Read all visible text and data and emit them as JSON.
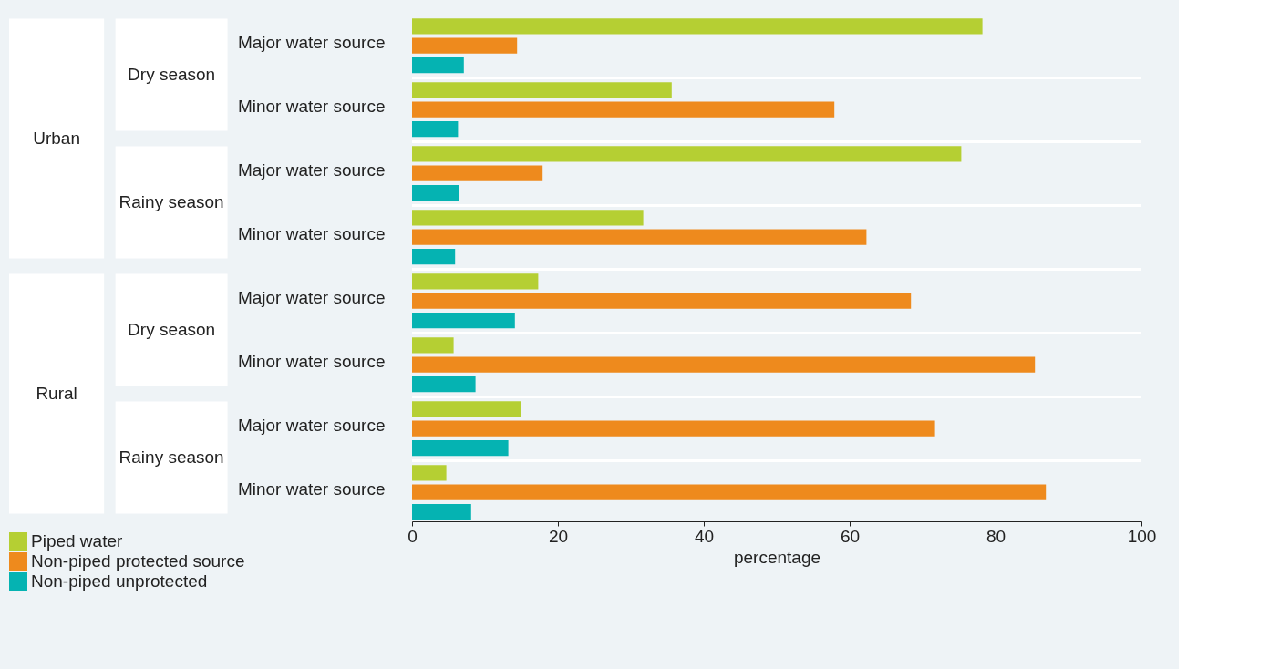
{
  "chart_data": {
    "type": "bar",
    "orientation": "horizontal",
    "categories": [
      "Major water source",
      "Minor water source",
      "Major water source",
      "Minor water source",
      "Major water source",
      "Minor water source",
      "Major water source",
      "Minor water source"
    ],
    "series": [
      {
        "name": "Piped water",
        "color": "#b5cf33",
        "values": [
          78.2,
          35.6,
          75.3,
          31.7,
          17.3,
          5.7,
          14.9,
          4.7
        ]
      },
      {
        "name": "Non-piped protected source",
        "color": "#ee8a1d",
        "values": [
          14.4,
          57.9,
          17.9,
          62.3,
          68.4,
          85.4,
          71.7,
          86.9
        ]
      },
      {
        "name": "Non-piped unprotected",
        "color": "#05b3b2",
        "values": [
          7.1,
          6.3,
          6.5,
          5.9,
          14.1,
          8.7,
          13.2,
          8.1
        ]
      }
    ],
    "xlim": [
      0,
      100
    ],
    "xticks": [
      0,
      20,
      40,
      60,
      80,
      100
    ],
    "xlabel": "percentage",
    "annotations": [
      "Urban",
      "Dry season",
      "Rainy season",
      "Rural",
      "Dry season",
      "Rainy season"
    ],
    "legend": "bottom left",
    "grid": false
  }
}
